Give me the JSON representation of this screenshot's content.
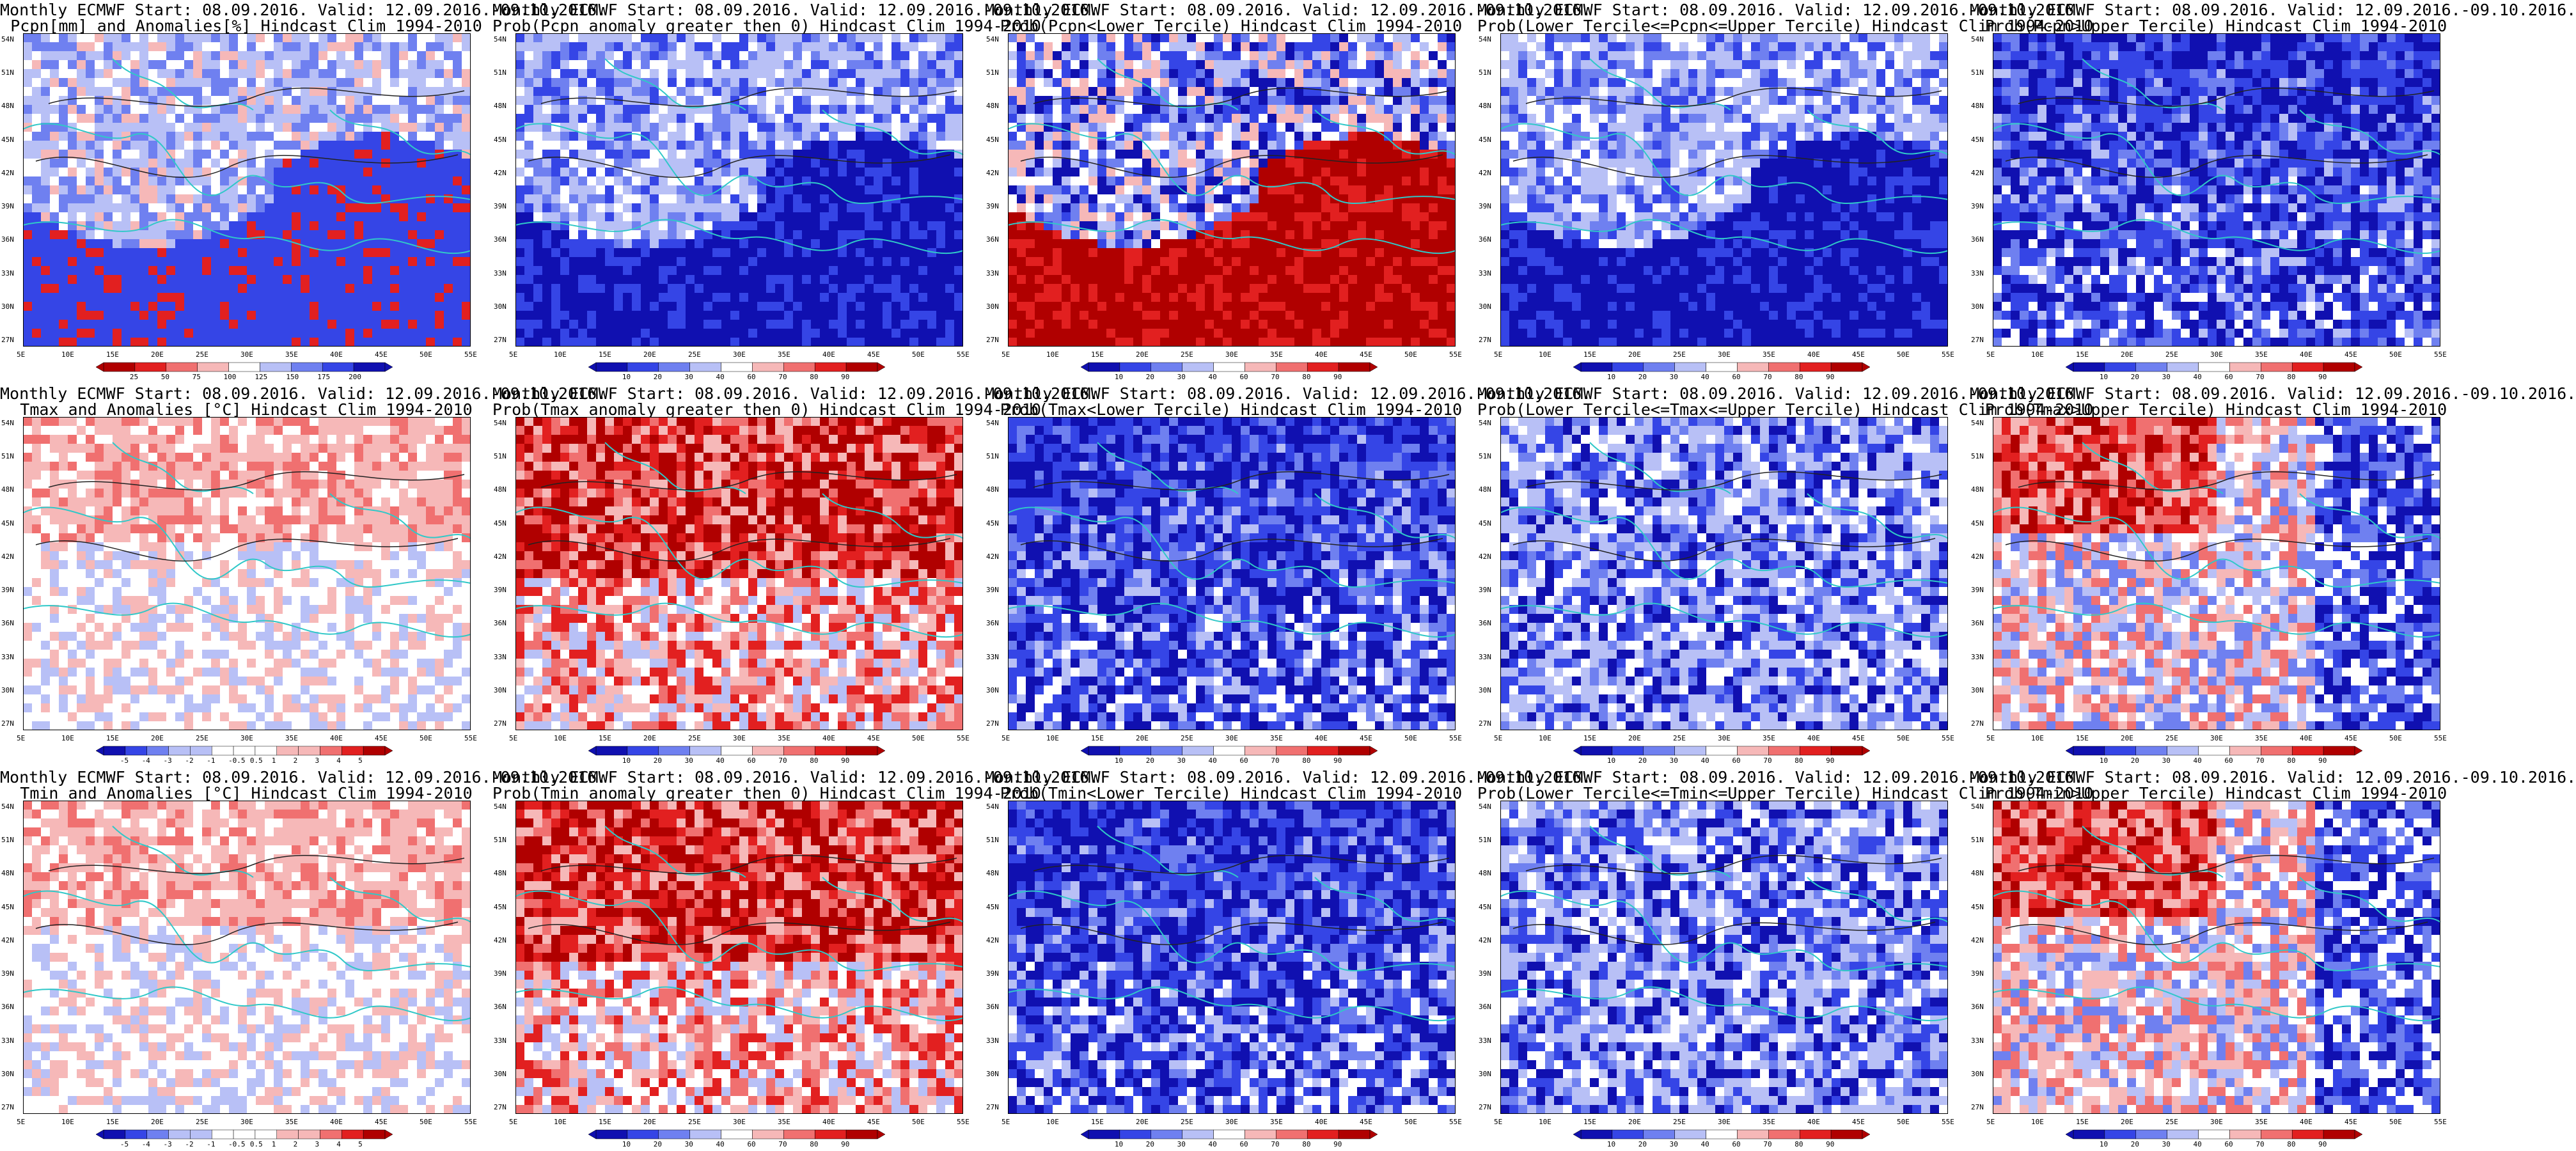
{
  "panels": [
    {
      "title1": "Monthly ECMWF Start: 08.09.2016. Valid: 12.09.2016.-09.10.2016.",
      "title2": "Pcpn[mm] and Anomalies[%] Hindcast Clim 1994-2010",
      "pattern": "precip-anom",
      "colorbar": [
        "25",
        "50",
        "75",
        "100",
        "125",
        "150",
        "175",
        "200"
      ]
    },
    {
      "title1": "Monthly ECMWF Start: 08.09.2016. Valid: 12.09.2016.-09.10.2016.",
      "title2": "Prob(Pcpn anomaly greater then 0) Hindcast Clim 1994-2010",
      "pattern": "blue-south",
      "colorbar": [
        "10",
        "20",
        "30",
        "40",
        "60",
        "70",
        "80",
        "90"
      ]
    },
    {
      "title1": "Monthly ECMWF Start: 08.09.2016. Valid: 12.09.2016.-09.10.2016.",
      "title2": "Prob(Pcpn<Lower Tercile) Hindcast Clim 1994-2010",
      "pattern": "red-south",
      "colorbar": [
        "10",
        "20",
        "30",
        "40",
        "60",
        "70",
        "80",
        "90"
      ]
    },
    {
      "title1": "Monthly ECMWF Start: 08.09.2016. Valid: 12.09.2016.-09.10.2016.",
      "title2": "Prob(Lower Tercile<=Pcpn<=Upper Tercile) Hindcast Clim 1994-2010",
      "pattern": "blue-south",
      "colorbar": [
        "10",
        "20",
        "30",
        "40",
        "60",
        "70",
        "80",
        "90"
      ]
    },
    {
      "title1": "Monthly ECMWF Start: 08.09.2016. Valid: 12.09.2016.-09.10.2016.",
      "title2": "Prob(Pcpn>Upper Tercile) Hindcast Clim 1994-2010",
      "pattern": "blue-all",
      "colorbar": [
        "10",
        "20",
        "30",
        "40",
        "60",
        "70",
        "80",
        "90"
      ]
    },
    {
      "title1": "Monthly ECMWF Start: 08.09.2016. Valid: 12.09.2016.-09.10.2016.",
      "title2": "Tmax and Anomalies [°C] Hindcast Clim 1994-2010",
      "pattern": "pink-north",
      "colorbar": [
        "-5",
        "-4",
        "-3",
        "-2",
        "-1",
        "-0.5",
        "0.5",
        "1",
        "2",
        "3",
        "4",
        "5"
      ]
    },
    {
      "title1": "Monthly ECMWF Start: 08.09.2016. Valid: 12.09.2016.-09.10.2016.",
      "title2": "Prob(Tmax anomaly greater then 0) Hindcast Clim 1994-2010",
      "pattern": "red-all",
      "colorbar": [
        "10",
        "20",
        "30",
        "40",
        "60",
        "70",
        "80",
        "90"
      ]
    },
    {
      "title1": "Monthly ECMWF Start: 08.09.2016. Valid: 12.09.2016.-09.10.2016.",
      "title2": "Prob(Tmax<Lower Tercile) Hindcast Clim 1994-2010",
      "pattern": "blue-all",
      "colorbar": [
        "10",
        "20",
        "30",
        "40",
        "60",
        "70",
        "80",
        "90"
      ]
    },
    {
      "title1": "Monthly ECMWF Start: 08.09.2016. Valid: 12.09.2016.-09.10.2016.",
      "title2": "Prob(Lower Tercile<=Tmax<=Upper Tercile) Hindcast Clim 1994-2010",
      "pattern": "blue-mix",
      "colorbar": [
        "10",
        "20",
        "30",
        "40",
        "60",
        "70",
        "80",
        "90"
      ]
    },
    {
      "title1": "Monthly ECMWF Start: 08.09.2016. Valid: 12.09.2016.-09.10.2016.",
      "title2": "Prob(Tmax>Upper Tercile) Hindcast Clim 1994-2010",
      "pattern": "red-mix",
      "colorbar": [
        "10",
        "20",
        "30",
        "40",
        "60",
        "70",
        "80",
        "90"
      ]
    },
    {
      "title1": "Monthly ECMWF Start: 08.09.2016. Valid: 12.09.2016.-09.10.2016.",
      "title2": "Tmin and Anomalies [°C] Hindcast Clim 1994-2010",
      "pattern": "pink-north",
      "colorbar": [
        "-5",
        "-4",
        "-3",
        "-2",
        "-1",
        "-0.5",
        "0.5",
        "1",
        "2",
        "3",
        "4",
        "5"
      ]
    },
    {
      "title1": "Monthly ECMWF Start: 08.09.2016. Valid: 12.09.2016.-09.10.2016.",
      "title2": "Prob(Tmin anomaly greater then 0) Hindcast Clim 1994-2010",
      "pattern": "red-all",
      "colorbar": [
        "10",
        "20",
        "30",
        "40",
        "60",
        "70",
        "80",
        "90"
      ]
    },
    {
      "title1": "Monthly ECMWF Start: 08.09.2016. Valid: 12.09.2016.-09.10.2016.",
      "title2": "Prob(Tmin<Lower Tercile) Hindcast Clim 1994-2010",
      "pattern": "blue-all",
      "colorbar": [
        "10",
        "20",
        "30",
        "40",
        "60",
        "70",
        "80",
        "90"
      ]
    },
    {
      "title1": "Monthly ECMWF Start: 08.09.2016. Valid: 12.09.2016.-09.10.2016.",
      "title2": "Prob(Lower Tercile<=Tmin<=Upper Tercile) Hindcast Clim 1994-2010",
      "pattern": "blue-mix",
      "colorbar": [
        "10",
        "20",
        "30",
        "40",
        "60",
        "70",
        "80",
        "90"
      ]
    },
    {
      "title1": "Monthly ECMWF Start: 08.09.2016. Valid: 12.09.2016.-09.10.2016.",
      "title2": "Prob(Tmin>Upper Tercile) Hindcast Clim 1994-2010",
      "pattern": "red-mix",
      "colorbar": [
        "10",
        "20",
        "30",
        "40",
        "60",
        "70",
        "80",
        "90"
      ]
    }
  ],
  "lat_labels": [
    "54N",
    "51N",
    "48N",
    "45N",
    "42N",
    "39N",
    "36N",
    "33N",
    "30N",
    "27N"
  ],
  "lon_labels": [
    "5E",
    "10E",
    "15E",
    "20E",
    "25E",
    "30E",
    "35E",
    "40E",
    "45E",
    "50E",
    "55E"
  ],
  "chart_data": {
    "type": "heatmap",
    "layout": "3 rows x 5 columns of map panels",
    "region": {
      "lon_range": [
        5,
        55
      ],
      "lat_range": [
        25,
        55
      ]
    },
    "colors": {
      "deep_blue": "#1010b0",
      "blue": "#3545e6",
      "mid_blue": "#6f80f0",
      "light_blue": "#b8c0f6",
      "white": "#ffffff",
      "light_red": "#f6b8b8",
      "mid_red": "#f07070",
      "red": "#e22020",
      "dark_red": "#b00000",
      "coast": "#30c8c8",
      "contour": "#222222"
    }
  }
}
